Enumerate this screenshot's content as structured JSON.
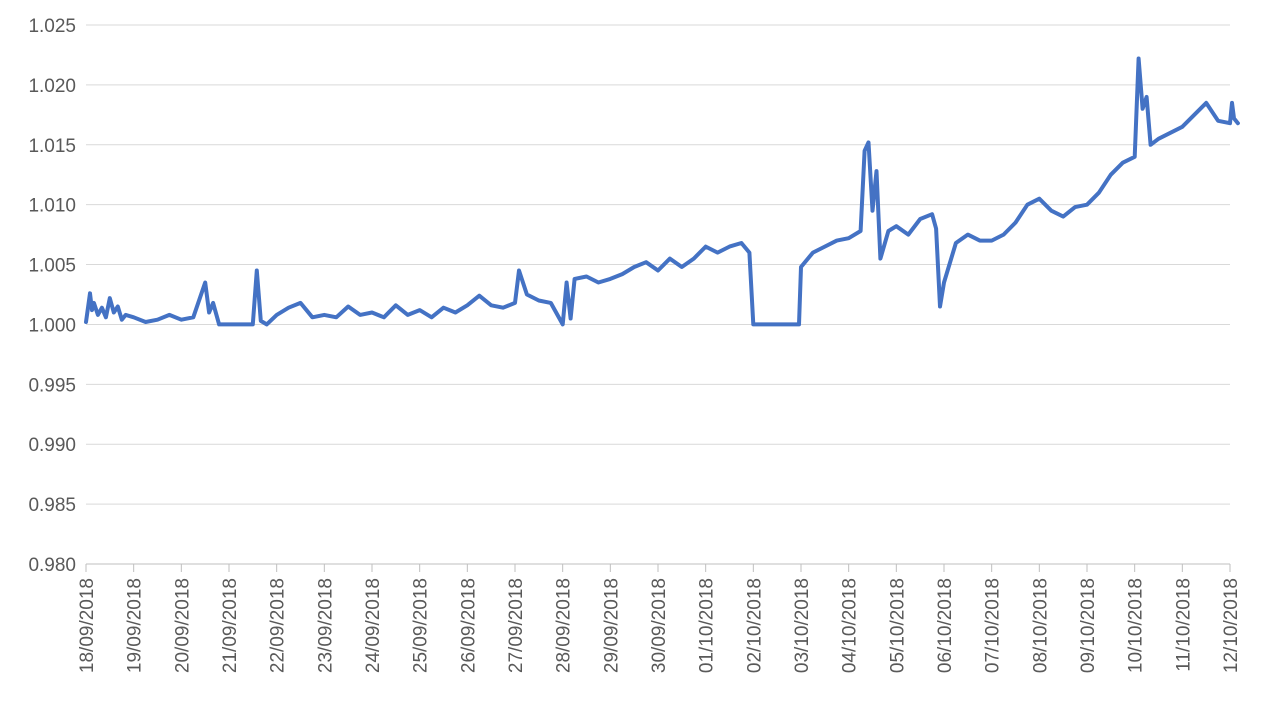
{
  "chart_data": {
    "type": "line",
    "title": "",
    "xlabel": "",
    "ylabel": "",
    "ylim": [
      0.98,
      1.025
    ],
    "y_ticks": [
      "1.025",
      "1.020",
      "1.015",
      "1.010",
      "1.005",
      "1.000",
      "0.995",
      "0.990",
      "0.985",
      "0.980"
    ],
    "x_tick_labels": [
      "18/09/2018",
      "19/09/2018",
      "20/09/2018",
      "21/09/2018",
      "22/09/2018",
      "23/09/2018",
      "24/09/2018",
      "25/09/2018",
      "26/09/2018",
      "27/09/2018",
      "28/09/2018",
      "29/09/2018",
      "30/09/2018",
      "01/10/2018",
      "02/10/2018",
      "03/10/2018",
      "04/10/2018",
      "05/10/2018",
      "06/10/2018",
      "07/10/2018",
      "08/10/2018",
      "09/10/2018",
      "10/10/2018",
      "11/10/2018",
      "12/10/2018"
    ],
    "grid": true,
    "legend": "none",
    "series_color": "#4472c4",
    "series": [
      {
        "x": [
          "18/09/2018 00:00",
          "18/09/2018 02:00",
          "18/09/2018 03:00",
          "18/09/2018 04:00",
          "18/09/2018 06:00",
          "18/09/2018 08:00",
          "18/09/2018 10:00",
          "18/09/2018 12:00",
          "18/09/2018 14:00",
          "18/09/2018 16:00",
          "18/09/2018 18:00",
          "18/09/2018 20:00",
          "19/09/2018 00:00",
          "19/09/2018 06:00",
          "19/09/2018 12:00",
          "19/09/2018 18:00",
          "20/09/2018 00:00",
          "20/09/2018 06:00",
          "20/09/2018 12:00",
          "20/09/2018 14:00",
          "20/09/2018 16:00",
          "20/09/2018 19:00",
          "21/09/2018 00:00",
          "21/09/2018 12:00",
          "21/09/2018 14:00",
          "21/09/2018 16:00",
          "21/09/2018 19:00",
          "22/09/2018 00:00",
          "22/09/2018 06:00",
          "22/09/2018 12:00",
          "22/09/2018 18:00",
          "23/09/2018 00:00",
          "23/09/2018 06:00",
          "23/09/2018 12:00",
          "23/09/2018 18:00",
          "24/09/2018 00:00",
          "24/09/2018 06:00",
          "24/09/2018 12:00",
          "24/09/2018 18:00",
          "25/09/2018 00:00",
          "25/09/2018 06:00",
          "25/09/2018 12:00",
          "25/09/2018 18:00",
          "26/09/2018 00:00",
          "26/09/2018 06:00",
          "26/09/2018 12:00",
          "26/09/2018 18:00",
          "27/09/2018 00:00",
          "27/09/2018 02:00",
          "27/09/2018 06:00",
          "27/09/2018 12:00",
          "27/09/2018 18:00",
          "28/09/2018 00:00",
          "28/09/2018 02:00",
          "28/09/2018 04:00",
          "28/09/2018 06:00",
          "28/09/2018 12:00",
          "28/09/2018 18:00",
          "29/09/2018 00:00",
          "29/09/2018 06:00",
          "29/09/2018 12:00",
          "29/09/2018 18:00",
          "30/09/2018 00:00",
          "30/09/2018 06:00",
          "30/09/2018 12:00",
          "30/09/2018 18:00",
          "01/10/2018 00:00",
          "01/10/2018 06:00",
          "01/10/2018 12:00",
          "01/10/2018 18:00",
          "01/10/2018 22:00",
          "02/10/2018 00:00",
          "02/10/2018 12:00",
          "02/10/2018 23:00",
          "03/10/2018 00:00",
          "03/10/2018 06:00",
          "03/10/2018 12:00",
          "03/10/2018 18:00",
          "04/10/2018 00:00",
          "04/10/2018 06:00",
          "04/10/2018 08:00",
          "04/10/2018 10:00",
          "04/10/2018 12:00",
          "04/10/2018 14:00",
          "04/10/2018 16:00",
          "04/10/2018 20:00",
          "05/10/2018 00:00",
          "05/10/2018 06:00",
          "05/10/2018 12:00",
          "05/10/2018 18:00",
          "05/10/2018 20:00",
          "05/10/2018 22:00",
          "06/10/2018 00:00",
          "06/10/2018 06:00",
          "06/10/2018 12:00",
          "06/10/2018 18:00",
          "07/10/2018 00:00",
          "07/10/2018 06:00",
          "07/10/2018 12:00",
          "07/10/2018 18:00",
          "08/10/2018 00:00",
          "08/10/2018 06:00",
          "08/10/2018 12:00",
          "08/10/2018 18:00",
          "09/10/2018 00:00",
          "09/10/2018 06:00",
          "09/10/2018 12:00",
          "09/10/2018 18:00",
          "10/10/2018 00:00",
          "10/10/2018 02:00",
          "10/10/2018 04:00",
          "10/10/2018 06:00",
          "10/10/2018 08:00",
          "10/10/2018 12:00",
          "10/10/2018 18:00",
          "11/10/2018 00:00",
          "11/10/2018 06:00",
          "11/10/2018 12:00",
          "11/10/2018 18:00",
          "12/10/2018 00:00",
          "12/10/2018 01:00",
          "12/10/2018 02:00",
          "12/10/2018 04:00"
        ],
        "values": [
          1.0002,
          1.0026,
          1.0012,
          1.0018,
          1.0008,
          1.0014,
          1.0006,
          1.0022,
          1.001,
          1.0015,
          1.0004,
          1.0008,
          1.0006,
          1.0002,
          1.0004,
          1.0008,
          1.0004,
          1.0006,
          1.0035,
          1.001,
          1.0018,
          1.0,
          1.0,
          1.0,
          1.0045,
          1.0003,
          1.0,
          1.0008,
          1.0014,
          1.0018,
          1.0006,
          1.0008,
          1.0006,
          1.0015,
          1.0008,
          1.001,
          1.0006,
          1.0016,
          1.0008,
          1.0012,
          1.0006,
          1.0014,
          1.001,
          1.0016,
          1.0024,
          1.0016,
          1.0014,
          1.0018,
          1.0045,
          1.0025,
          1.002,
          1.0018,
          1.0,
          1.0035,
          1.0005,
          1.0038,
          1.004,
          1.0035,
          1.0038,
          1.0042,
          1.0048,
          1.0052,
          1.0045,
          1.0055,
          1.0048,
          1.0055,
          1.0065,
          1.006,
          1.0065,
          1.0068,
          1.006,
          1.0,
          1.0,
          1.0,
          1.0048,
          1.006,
          1.0065,
          1.007,
          1.0072,
          1.0078,
          1.0145,
          1.0152,
          1.0095,
          1.0128,
          1.0055,
          1.0078,
          1.0082,
          1.0075,
          1.0088,
          1.0092,
          1.008,
          1.0015,
          1.0035,
          1.0068,
          1.0075,
          1.007,
          1.007,
          1.0075,
          1.0085,
          1.01,
          1.0105,
          1.0095,
          1.009,
          1.0098,
          1.01,
          1.011,
          1.0125,
          1.0135,
          1.014,
          1.0222,
          1.018,
          1.019,
          1.015,
          1.0155,
          1.016,
          1.0165,
          1.0175,
          1.0185,
          1.017,
          1.0168,
          1.0185,
          1.0172,
          1.0168
        ]
      }
    ]
  }
}
